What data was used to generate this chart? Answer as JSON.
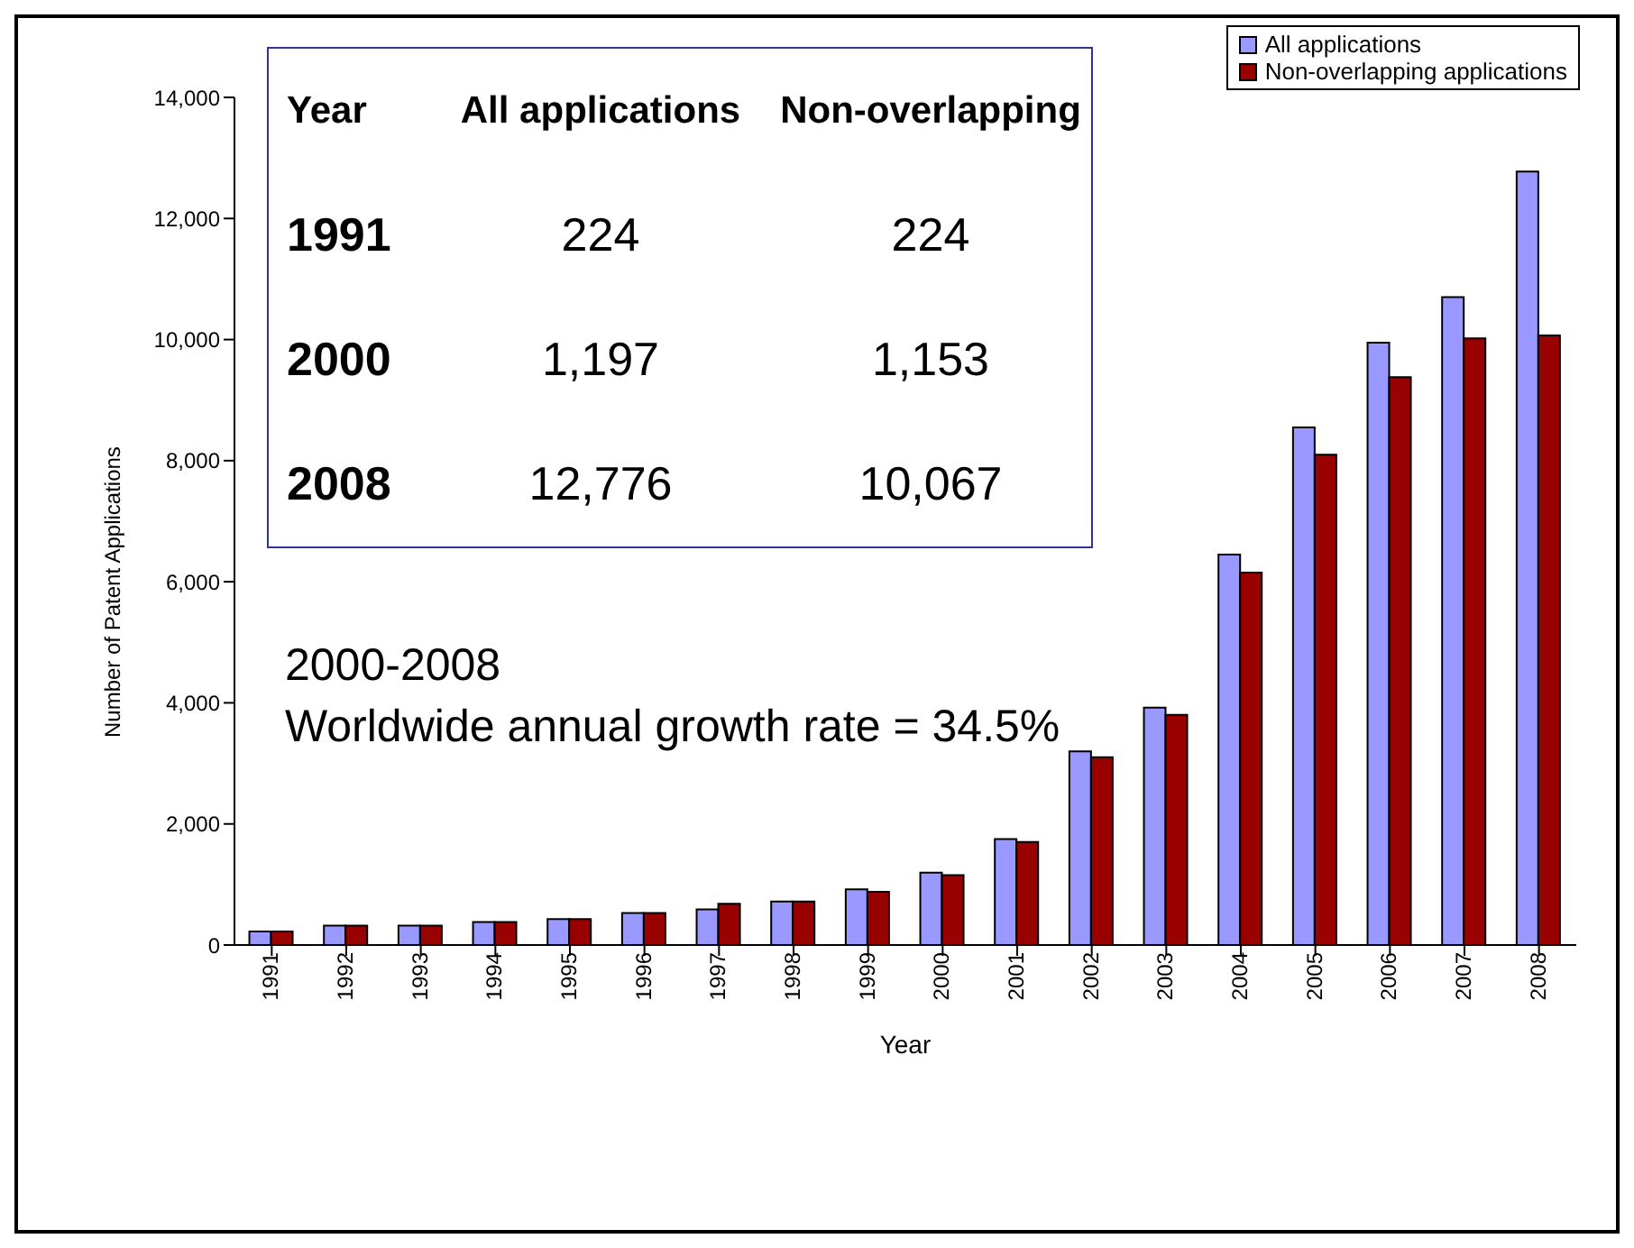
{
  "chart_data": {
    "type": "bar",
    "xlabel": "Year",
    "ylabel": "Number of Patent Applications",
    "categories": [
      "1991",
      "1992",
      "1993",
      "1994",
      "1995",
      "1996",
      "1997",
      "1998",
      "1999",
      "2000",
      "2001",
      "2002",
      "2003",
      "2004",
      "2005",
      "2006",
      "2007",
      "2008"
    ],
    "series": [
      {
        "name": "All applications",
        "color": "#9999ff",
        "values": [
          224,
          320,
          320,
          380,
          430,
          530,
          590,
          720,
          920,
          1197,
          1750,
          3200,
          3920,
          6450,
          8550,
          9950,
          10700,
          12776
        ]
      },
      {
        "name": "Non-overlapping applications",
        "color": "#990000",
        "values": [
          224,
          320,
          320,
          380,
          430,
          530,
          680,
          720,
          880,
          1153,
          1700,
          3100,
          3800,
          6150,
          8100,
          9380,
          10020,
          10067
        ]
      }
    ],
    "ylim": [
      0,
      14000
    ],
    "yticks": [
      {
        "value": 0,
        "label": "0"
      },
      {
        "value": 2000,
        "label": "2,000"
      },
      {
        "value": 4000,
        "label": "4,000"
      },
      {
        "value": 6000,
        "label": "6,000"
      },
      {
        "value": 8000,
        "label": "8,000"
      },
      {
        "value": 10000,
        "label": "10,000"
      },
      {
        "value": 12000,
        "label": "12,000"
      },
      {
        "value": 14000,
        "label": "14,000"
      }
    ],
    "grid": false,
    "legend": "top right",
    "annotations": [
      "Year",
      "All applications",
      "Non-overlapping",
      "1991",
      "224",
      "224",
      "2000",
      "1,197",
      "1,153",
      "2008",
      "12,776",
      "10,067",
      "2000-2008",
      "Worldwide annual growth rate = 34.5%"
    ]
  }
}
